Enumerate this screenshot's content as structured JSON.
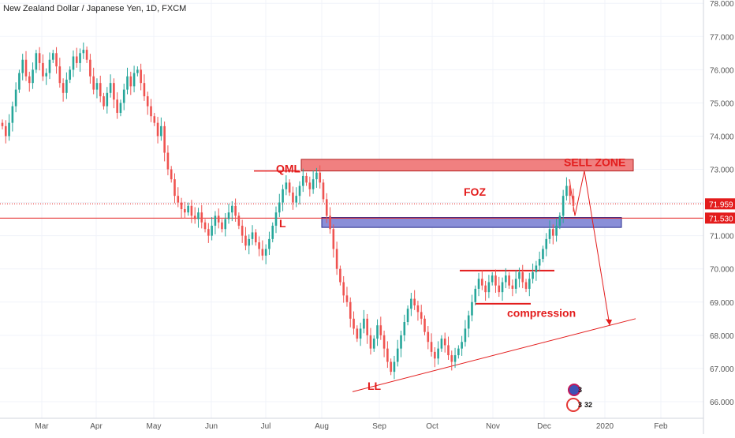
{
  "header": {
    "title": "New Zealand Dollar / Japanese Yen, 1D, FXCM"
  },
  "colors": {
    "bull": "#26a69a",
    "bear": "#ef5350",
    "annotation": "#e31c1c",
    "sell_zone_fill": "#f08080",
    "foz_fill": "#8a8fd8",
    "grid": "#f0f3fa",
    "axis_text": "#555555"
  },
  "chart_data": {
    "type": "candlestick",
    "title": "New Zealand Dollar / Japanese Yen, 1D, FXCM",
    "ylim": [
      65.5,
      78.1
    ],
    "y_ticks": [
      "78.000",
      "77.000",
      "76.000",
      "75.000",
      "74.000",
      "73.000",
      "72.000",
      "71.000",
      "70.000",
      "69.000",
      "68.000",
      "67.000",
      "66.000"
    ],
    "x_ticks": [
      "Mar",
      "Apr",
      "May",
      "Jun",
      "Jul",
      "Aug",
      "Sep",
      "Oct",
      "Nov",
      "Dec",
      "2020",
      "Feb"
    ],
    "price_tags": [
      {
        "label": "71.959",
        "value": 71.959,
        "style": "dotted"
      },
      {
        "label": "71.530",
        "value": 71.53,
        "style": "solid"
      }
    ],
    "closes": [
      74.3,
      74.0,
      74.4,
      74.9,
      75.4,
      75.9,
      76.3,
      75.8,
      75.6,
      76.0,
      76.5,
      76.2,
      75.8,
      75.9,
      76.3,
      76.5,
      76.1,
      75.6,
      75.3,
      75.7,
      76.0,
      76.4,
      76.2,
      76.5,
      76.6,
      76.3,
      75.8,
      75.4,
      75.6,
      75.2,
      74.9,
      75.3,
      75.6,
      75.1,
      74.7,
      75.0,
      75.4,
      75.8,
      75.5,
      75.9,
      76.0,
      75.6,
      75.2,
      74.9,
      74.6,
      74.4,
      74.0,
      74.3,
      73.5,
      73.0,
      72.7,
      72.2,
      72.0,
      71.8,
      71.7,
      71.9,
      71.6,
      71.5,
      71.7,
      71.4,
      71.2,
      71.0,
      71.3,
      71.6,
      71.4,
      71.2,
      71.5,
      71.7,
      71.9,
      71.6,
      71.3,
      71.0,
      70.7,
      70.9,
      71.1,
      70.8,
      70.6,
      70.4,
      70.6,
      70.9,
      71.3,
      71.7,
      72.0,
      72.4,
      72.6,
      72.3,
      72.0,
      72.2,
      72.5,
      72.8,
      72.6,
      72.4,
      72.7,
      72.9,
      72.6,
      72.1,
      71.6,
      71.2,
      70.6,
      70.0,
      69.6,
      69.2,
      69.0,
      68.5,
      68.2,
      67.9,
      68.2,
      68.5,
      68.0,
      67.6,
      67.9,
      68.3,
      68.0,
      67.6,
      67.2,
      66.9,
      67.2,
      67.6,
      68.0,
      68.4,
      68.8,
      69.1,
      68.9,
      68.7,
      68.5,
      68.1,
      67.8,
      67.5,
      67.3,
      67.6,
      67.9,
      67.7,
      67.4,
      67.2,
      67.4,
      67.6,
      67.8,
      68.2,
      68.6,
      69.0,
      69.4,
      69.7,
      69.5,
      69.3,
      69.6,
      69.8,
      69.5,
      69.3,
      69.6,
      69.8,
      69.5,
      69.4,
      69.7,
      69.9,
      69.6,
      69.4,
      69.7,
      69.9,
      70.1,
      70.3,
      70.6,
      70.9,
      71.2,
      71.0,
      71.3,
      71.6,
      72.2,
      72.5,
      72.2,
      71.9
    ]
  },
  "annotations": {
    "qml": "QML",
    "l": "L",
    "foz": "FOZ",
    "sell_zone": "SELL ZONE",
    "compression": "compression",
    "ll": "LL"
  },
  "badges": {
    "top_count": "3",
    "bottom_count_a": "3",
    "bottom_count_b": "32"
  }
}
